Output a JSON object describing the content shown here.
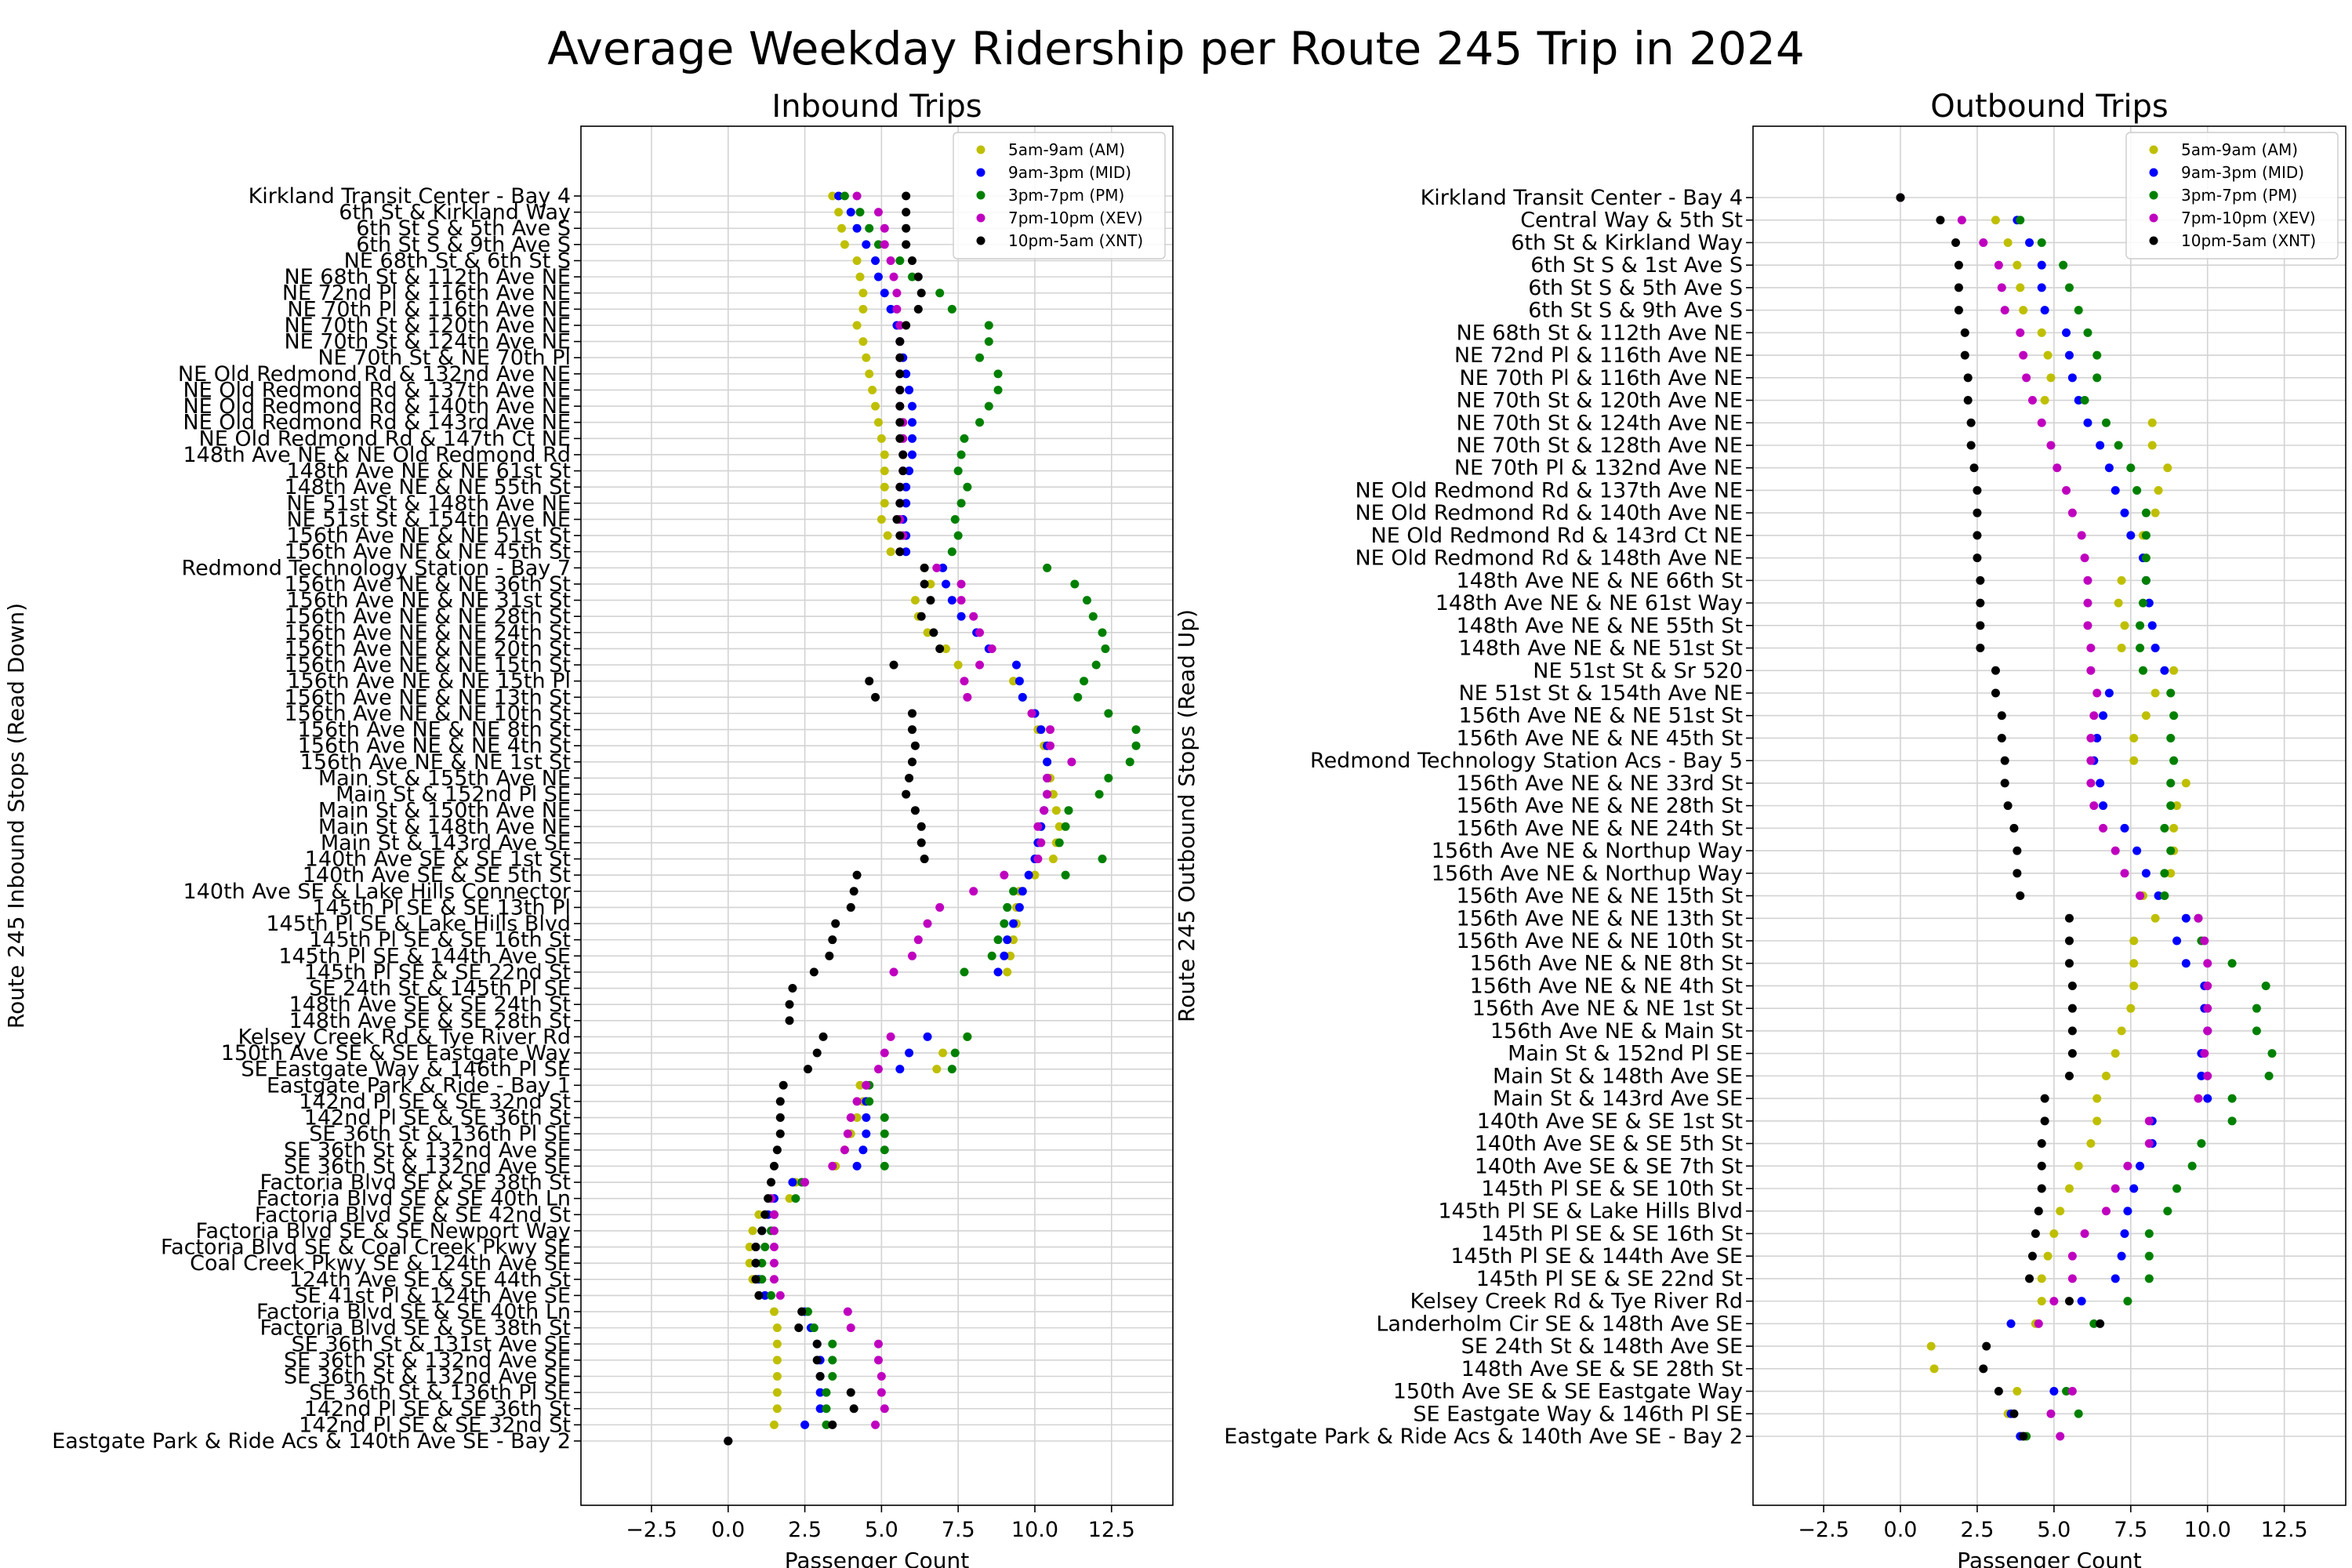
{
  "suptitle": "Average Weekday Ridership per Route 245 Trip in 2024",
  "chart_data": [
    {
      "type": "scatter",
      "title": "Inbound Trips",
      "xlabel": "Passenger Count",
      "ylabel": "Route 245 Inbound Stops (Read Down)",
      "xlim": [
        -4.8,
        14.5
      ],
      "xticks": [
        -2.5,
        0.0,
        2.5,
        5.0,
        7.5,
        10.0,
        12.5
      ],
      "xtick_labels": [
        "−2.5",
        "0.0",
        "2.5",
        "5.0",
        "7.5",
        "10.0",
        "12.5"
      ],
      "grid": true,
      "legend_position": "top-right",
      "stops": [
        "Kirkland Transit Center - Bay 4",
        "6th St & Kirkland Way",
        "6th St S & 5th Ave S",
        "6th St S & 9th Ave S",
        "NE 68th St & 6th St S",
        "NE 68th St & 112th Ave NE",
        "NE 72nd Pl & 116th Ave NE",
        "NE 70th Pl & 116th Ave NE",
        "NE 70th St & 120th Ave NE",
        "NE 70th St & 124th Ave NE",
        "NE 70th St & NE 70th Pl",
        "NE Old Redmond Rd & 132nd Ave NE",
        "NE Old Redmond Rd & 137th Ave NE",
        "NE Old Redmond Rd & 140th Ave NE",
        "NE Old Redmond Rd & 143rd Ave NE",
        "NE Old Redmond Rd & 147th Ct NE",
        "148th Ave NE & NE Old Redmond Rd",
        "148th Ave NE & NE 61st St",
        "148th Ave NE & NE 55th St",
        "NE 51st St & 148th Ave NE",
        "NE 51st St & 154th Ave NE",
        "156th Ave NE & NE 51st St",
        "156th Ave NE & NE 45th St",
        "Redmond Technology Station - Bay 7",
        "156th Ave NE & NE 36th St",
        "156th Ave NE & NE 31st St",
        "156th Ave NE & NE 28th St",
        "156th Ave NE & NE 24th St",
        "156th Ave NE & NE 20th St",
        "156th Ave NE & NE 15th St",
        "156th Ave NE & NE 15th Pl",
        "156th Ave NE & NE 13th St",
        "156th Ave NE & NE 10th St",
        "156th Ave NE & NE 8th St",
        "156th Ave NE & NE 4th St",
        "156th Ave NE & NE 1st St",
        "Main St & 155th Ave NE",
        "Main St & 152nd Pl SE",
        "Main St & 150th Ave NE",
        "Main St & 148th Ave NE",
        "Main St & 143rd Ave SE",
        "140th Ave SE & SE 1st St",
        "140th Ave SE & SE 5th St",
        "140th Ave SE & Lake Hills Connector",
        "145th Pl SE & SE 13th Pl",
        "145th Pl SE & Lake Hills Blvd",
        "145th Pl SE & SE 16th St",
        "145th Pl SE & 144th Ave SE",
        "145th Pl SE & SE 22nd St",
        "SE 24th St & 145th Pl SE",
        "148th Ave SE & SE 24th St",
        "148th Ave SE & SE 28th St",
        "Kelsey Creek Rd & Tye River Rd",
        "150th Ave SE & SE Eastgate Way",
        "SE Eastgate Way & 146th Pl SE",
        "Eastgate Park & Ride - Bay 1",
        "142nd Pl SE & SE 32nd St",
        "142nd Pl SE & SE 36th St",
        "SE 36th St & 136th Pl SE",
        "SE 36th St & 132nd Ave SE",
        "SE 36th St & 132nd Ave SE",
        "Factoria Blvd SE & SE 38th St",
        "Factoria Blvd SE & SE 40th Ln",
        "Factoria Blvd SE & SE 42nd St",
        "Factoria Blvd SE & SE Newport Way",
        "Factoria Blvd SE & Coal Creek Pkwy SE",
        "Coal Creek Pkwy SE & 124th Ave SE",
        "124th Ave SE & SE 44th St",
        "SE 41st Pl & 124th Ave SE",
        "Factoria Blvd SE & SE 40th Ln",
        "Factoria Blvd SE & SE 38th St",
        "SE 36th St & 131st Ave SE",
        "SE 36th St & 132nd Ave SE",
        "SE 36th St & 132nd Ave SE",
        "SE 36th St & 136th Pl SE",
        "142nd Pl SE & SE 36th St",
        "142nd Pl SE & SE 32nd St",
        "Eastgate Park & Ride Acs & 140th Ave SE - Bay 2"
      ],
      "series": [
        {
          "name": "5am-9am (AM)",
          "color": "#bfbf00",
          "values": [
            3.4,
            3.6,
            3.7,
            3.8,
            4.2,
            4.3,
            4.4,
            4.4,
            4.2,
            4.4,
            4.5,
            4.6,
            4.7,
            4.8,
            4.9,
            5.0,
            5.1,
            5.1,
            5.1,
            5.1,
            5.0,
            5.2,
            5.3,
            6.4,
            6.6,
            6.1,
            6.2,
            6.5,
            7.1,
            7.5,
            9.3,
            9.6,
            9.9,
            10.1,
            10.3,
            10.4,
            10.5,
            10.6,
            10.7,
            10.8,
            10.7,
            10.6,
            10.0,
            9.5,
            9.4,
            9.4,
            9.3,
            9.2,
            9.1,
            null,
            null,
            null,
            7.8,
            7.0,
            6.8,
            4.3,
            4.4,
            4.2,
            4.0,
            3.8,
            3.5,
            2.2,
            2.0,
            1.0,
            0.8,
            0.7,
            0.7,
            0.8,
            1.0,
            1.5,
            1.6,
            1.6,
            1.6,
            1.6,
            1.6,
            1.6,
            1.5,
            0.0
          ]
        },
        {
          "name": "9am-3pm (MID)",
          "color": "#0000ff",
          "values": [
            3.6,
            4.0,
            4.2,
            4.5,
            4.8,
            4.9,
            5.1,
            5.3,
            5.5,
            5.6,
            5.7,
            5.8,
            5.9,
            6.0,
            6.0,
            6.0,
            6.0,
            5.9,
            5.8,
            5.8,
            5.7,
            5.8,
            5.8,
            7.0,
            7.1,
            7.3,
            7.6,
            8.1,
            8.5,
            9.4,
            9.5,
            9.6,
            10.0,
            10.2,
            10.4,
            10.4,
            10.4,
            10.4,
            10.3,
            10.2,
            10.1,
            10.0,
            9.8,
            9.6,
            9.5,
            9.3,
            9.1,
            9.0,
            8.8,
            null,
            null,
            null,
            6.5,
            5.9,
            5.6,
            4.5,
            4.5,
            4.5,
            4.5,
            4.4,
            4.2,
            2.1,
            1.5,
            1.3,
            1.1,
            0.9,
            0.9,
            1.0,
            1.2,
            2.5,
            2.7,
            2.9,
            3.0,
            3.0,
            3.0,
            3.0,
            2.5,
            0.0
          ]
        },
        {
          "name": "3pm-7pm (PM)",
          "color": "#008000",
          "values": [
            3.8,
            4.3,
            4.6,
            4.9,
            5.6,
            6.0,
            6.9,
            7.3,
            8.5,
            8.5,
            8.2,
            8.8,
            8.8,
            8.5,
            8.2,
            7.7,
            7.6,
            7.5,
            7.8,
            7.6,
            7.4,
            7.5,
            7.3,
            10.4,
            11.3,
            11.7,
            11.9,
            12.2,
            12.3,
            12.0,
            11.6,
            11.4,
            12.4,
            13.3,
            13.3,
            13.1,
            12.4,
            12.1,
            11.1,
            11.0,
            10.8,
            12.2,
            11.0,
            9.3,
            9.1,
            9.0,
            8.8,
            8.6,
            7.7,
            null,
            null,
            null,
            7.8,
            7.4,
            7.3,
            4.6,
            4.6,
            5.1,
            5.1,
            5.1,
            5.1,
            2.4,
            2.2,
            1.5,
            1.4,
            1.2,
            1.1,
            1.1,
            1.4,
            2.6,
            2.8,
            3.4,
            3.4,
            3.4,
            3.2,
            3.2,
            3.2,
            0.0
          ]
        },
        {
          "name": "7pm-10pm (XEV)",
          "color": "#bf00bf",
          "values": [
            4.2,
            4.9,
            5.1,
            5.1,
            5.3,
            5.4,
            5.5,
            5.5,
            5.6,
            5.6,
            5.6,
            5.6,
            5.6,
            5.6,
            5.7,
            5.7,
            5.7,
            5.7,
            5.6,
            5.6,
            5.6,
            5.7,
            5.6,
            6.8,
            7.6,
            7.6,
            8.0,
            8.2,
            8.6,
            8.2,
            7.7,
            7.8,
            9.9,
            10.5,
            10.5,
            11.2,
            10.4,
            10.4,
            10.3,
            10.1,
            10.2,
            10.1,
            9.0,
            8.0,
            6.9,
            6.5,
            6.2,
            6.0,
            5.4,
            null,
            null,
            null,
            5.3,
            5.1,
            4.9,
            4.5,
            4.2,
            4.0,
            3.9,
            3.8,
            3.4,
            2.5,
            1.4,
            1.5,
            1.5,
            1.5,
            1.5,
            1.5,
            1.7,
            3.9,
            4.0,
            4.9,
            4.9,
            5.0,
            5.0,
            5.1,
            4.8,
            0.0
          ]
        },
        {
          "name": "10pm-5am (XNT)",
          "color": "#000000",
          "values": [
            5.8,
            5.8,
            5.8,
            5.8,
            6.0,
            6.2,
            6.3,
            6.2,
            5.8,
            5.6,
            5.6,
            5.6,
            5.6,
            5.6,
            5.6,
            5.6,
            5.7,
            5.7,
            5.6,
            5.6,
            5.5,
            5.6,
            5.6,
            6.4,
            6.4,
            6.6,
            6.3,
            6.7,
            6.9,
            5.4,
            4.6,
            4.8,
            6.0,
            6.0,
            6.1,
            6.0,
            5.9,
            5.8,
            6.1,
            6.3,
            6.3,
            6.4,
            4.2,
            4.1,
            4.0,
            3.5,
            3.4,
            3.3,
            2.8,
            2.1,
            2.0,
            2.0,
            3.1,
            2.9,
            2.6,
            1.8,
            1.7,
            1.7,
            1.7,
            1.6,
            1.5,
            1.4,
            1.3,
            1.2,
            1.1,
            0.9,
            0.9,
            0.9,
            1.0,
            2.4,
            2.3,
            2.9,
            2.9,
            3.0,
            4.0,
            4.1,
            3.4,
            0.0
          ]
        }
      ]
    },
    {
      "type": "scatter",
      "title": "Outbound Trips",
      "xlabel": "Passenger Count",
      "ylabel": "Route 245 Outbound Stops (Read Up)",
      "xlim": [
        -4.8,
        14.5
      ],
      "xticks": [
        -2.5,
        0.0,
        2.5,
        5.0,
        7.5,
        10.0,
        12.5
      ],
      "xtick_labels": [
        "−2.5",
        "0.0",
        "2.5",
        "5.0",
        "7.5",
        "10.0",
        "12.5"
      ],
      "grid": true,
      "legend_position": "top-right",
      "stops": [
        "Kirkland Transit Center - Bay 4",
        "Central Way & 5th St",
        "6th St & Kirkland Way",
        "6th St S & 1st Ave S",
        "6th St S & 5th Ave S",
        "6th St S & 9th Ave S",
        "NE 68th St & 112th Ave NE",
        "NE 72nd Pl & 116th Ave NE",
        "NE 70th Pl & 116th Ave NE",
        "NE 70th St & 120th Ave NE",
        "NE 70th St & 124th Ave NE",
        "NE 70th St & 128th Ave NE",
        "NE 70th Pl & 132nd Ave NE",
        "NE Old Redmond Rd & 137th Ave NE",
        "NE Old Redmond Rd & 140th Ave NE",
        "NE Old Redmond Rd & 143rd Ct NE",
        "NE Old Redmond Rd & 148th Ave NE",
        "148th Ave NE & NE 66th St",
        "148th Ave NE & NE 61st Way",
        "148th Ave NE & NE 55th St",
        "148th Ave NE & NE 51st St",
        "NE 51st St & Sr 520",
        "NE 51st St & 154th Ave NE",
        "156th Ave NE & NE 51st St",
        "156th Ave NE & NE 45th St",
        "Redmond Technology Station Acs - Bay 5",
        "156th Ave NE & NE 33rd St",
        "156th Ave NE & NE 28th St",
        "156th Ave NE & NE 24th St",
        "156th Ave NE & Northup Way",
        "156th Ave NE & Northup Way",
        "156th Ave NE & NE 15th St",
        "156th Ave NE & NE 13th St",
        "156th Ave NE & NE 10th St",
        "156th Ave NE & NE 8th St",
        "156th Ave NE & NE 4th St",
        "156th Ave NE & NE 1st St",
        "156th Ave NE & Main St",
        "Main St & 152nd Pl SE",
        "Main St & 148th Ave SE",
        "Main St & 143rd Ave SE",
        "140th Ave SE & SE 1st St",
        "140th Ave SE & SE 5th St",
        "140th Ave SE & SE 7th St",
        "145th Pl SE & SE 10th St",
        "145th Pl SE & Lake Hills Blvd",
        "145th Pl SE & SE 16th St",
        "145th Pl SE & 144th Ave SE",
        "145th Pl SE & SE 22nd St",
        "Kelsey Creek Rd & Tye River Rd",
        "Landerholm Cir SE & 148th Ave SE",
        "SE 24th St & 148th Ave SE",
        "148th Ave SE & SE 28th St",
        "150th Ave SE & SE Eastgate Way",
        "SE Eastgate Way & 146th Pl SE",
        "Eastgate Park & Ride Acs & 140th Ave SE - Bay 2"
      ],
      "series": [
        {
          "name": "5am-9am (AM)",
          "color": "#bfbf00",
          "values": [
            0.0,
            3.1,
            3.5,
            3.8,
            3.9,
            4.0,
            4.6,
            4.8,
            4.9,
            4.7,
            8.2,
            8.2,
            8.7,
            8.4,
            8.3,
            7.9,
            7.9,
            7.2,
            7.1,
            7.3,
            7.2,
            8.9,
            8.3,
            8.0,
            7.6,
            7.6,
            9.3,
            9.0,
            8.9,
            8.9,
            8.8,
            7.9,
            8.3,
            7.6,
            7.6,
            7.6,
            7.5,
            7.2,
            7.0,
            6.7,
            6.4,
            6.4,
            6.2,
            5.8,
            5.5,
            5.2,
            5.0,
            4.8,
            4.6,
            4.6,
            4.4,
            1.0,
            1.1,
            3.8,
            3.5,
            4.0
          ]
        },
        {
          "name": "9am-3pm (MID)",
          "color": "#0000ff",
          "values": [
            0.0,
            3.8,
            4.2,
            4.6,
            4.6,
            4.7,
            5.4,
            5.5,
            5.6,
            5.8,
            6.1,
            6.5,
            6.8,
            7.0,
            7.3,
            7.5,
            7.9,
            8.0,
            8.1,
            8.2,
            8.3,
            8.6,
            6.8,
            6.6,
            6.4,
            6.3,
            6.5,
            6.6,
            7.3,
            7.7,
            8.0,
            8.4,
            9.3,
            9.0,
            9.3,
            9.9,
            9.9,
            10.0,
            9.8,
            9.8,
            10.0,
            8.2,
            8.2,
            7.8,
            7.6,
            7.4,
            7.3,
            7.2,
            7.0,
            5.9,
            3.6,
            null,
            null,
            5.0,
            3.6,
            3.9
          ]
        },
        {
          "name": "3pm-7pm (PM)",
          "color": "#008000",
          "values": [
            0.0,
            3.9,
            4.6,
            5.3,
            5.5,
            5.8,
            6.1,
            6.4,
            6.4,
            6.0,
            6.7,
            7.1,
            7.5,
            7.7,
            8.0,
            8.0,
            8.0,
            8.0,
            7.9,
            7.8,
            7.8,
            7.9,
            8.8,
            8.9,
            8.8,
            8.9,
            8.8,
            8.8,
            8.6,
            8.8,
            8.6,
            8.6,
            9.7,
            9.8,
            10.8,
            11.9,
            11.6,
            11.6,
            12.1,
            12.0,
            10.8,
            10.8,
            9.8,
            9.5,
            9.0,
            8.7,
            8.1,
            8.1,
            8.1,
            7.4,
            6.3,
            null,
            null,
            5.4,
            5.8,
            4.1
          ]
        },
        {
          "name": "7pm-10pm (XEV)",
          "color": "#bf00bf",
          "values": [
            0.0,
            2.0,
            2.7,
            3.2,
            3.3,
            3.4,
            3.9,
            4.0,
            4.1,
            4.3,
            4.6,
            4.9,
            5.1,
            5.4,
            5.6,
            5.9,
            6.0,
            6.1,
            6.1,
            6.1,
            6.2,
            6.2,
            6.4,
            6.3,
            6.2,
            6.2,
            6.2,
            6.3,
            6.6,
            7.0,
            7.3,
            7.8,
            9.7,
            9.9,
            10.0,
            10.0,
            10.0,
            10.0,
            9.9,
            10.0,
            9.7,
            8.1,
            8.1,
            7.4,
            7.0,
            6.7,
            6.0,
            5.6,
            5.6,
            5.0,
            4.5,
            null,
            null,
            5.6,
            4.9,
            5.2
          ]
        },
        {
          "name": "10pm-5am (XNT)",
          "color": "#000000",
          "values": [
            0.0,
            1.3,
            1.8,
            1.9,
            1.9,
            1.9,
            2.1,
            2.1,
            2.2,
            2.2,
            2.3,
            2.3,
            2.4,
            2.5,
            2.5,
            2.5,
            2.5,
            2.6,
            2.6,
            2.6,
            2.6,
            3.1,
            3.1,
            3.3,
            3.3,
            3.4,
            3.4,
            3.5,
            3.7,
            3.8,
            3.8,
            3.9,
            5.5,
            5.5,
            5.5,
            5.6,
            5.6,
            5.6,
            5.6,
            5.5,
            4.7,
            4.7,
            4.6,
            4.6,
            4.6,
            4.5,
            4.4,
            4.3,
            4.2,
            5.5,
            6.5,
            2.8,
            2.7,
            3.2,
            3.7,
            4.0
          ]
        }
      ]
    }
  ]
}
